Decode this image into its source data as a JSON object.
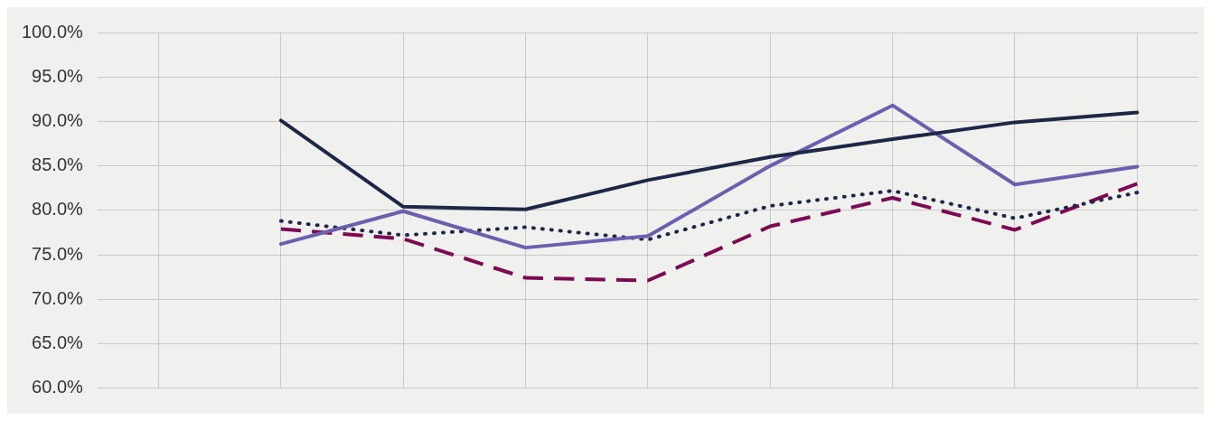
{
  "chart_data": {
    "type": "line",
    "categories": [
      null,
      null,
      null,
      null,
      null,
      null,
      null,
      null,
      null
    ],
    "ylim": [
      60,
      100
    ],
    "yticks": [
      {
        "value": 60,
        "label": "60.0%"
      },
      {
        "value": 65,
        "label": "65.0%"
      },
      {
        "value": 70,
        "label": "70.0%"
      },
      {
        "value": 75,
        "label": "75.0%"
      },
      {
        "value": 80,
        "label": "80.0%"
      },
      {
        "value": 85,
        "label": "85.0%"
      },
      {
        "value": 90,
        "label": "90.0%"
      },
      {
        "value": 95,
        "label": "95.0%"
      },
      {
        "value": 100,
        "label": "100.0%"
      }
    ],
    "grid": true,
    "marker": "none",
    "series": [
      {
        "color": "#1f2747",
        "line_style": "solid",
        "values": [
          null,
          90.1,
          80.4,
          80.1,
          83.4,
          86.0,
          88.0,
          89.9,
          91.0
        ]
      },
      {
        "color": "#6c5fad",
        "line_style": "solid",
        "values": [
          null,
          76.2,
          79.9,
          75.8,
          77.1,
          85.0,
          91.8,
          82.9,
          84.9
        ]
      },
      {
        "color": "#1f2747",
        "line_style": "dotted",
        "values": [
          null,
          78.8,
          77.2,
          78.1,
          76.7,
          80.5,
          82.2,
          79.1,
          82.0
        ]
      },
      {
        "color": "#7b0a52",
        "line_style": "dashed",
        "values": [
          null,
          77.9,
          76.8,
          72.4,
          72.1,
          78.2,
          81.4,
          77.8,
          83.0
        ]
      }
    ]
  }
}
